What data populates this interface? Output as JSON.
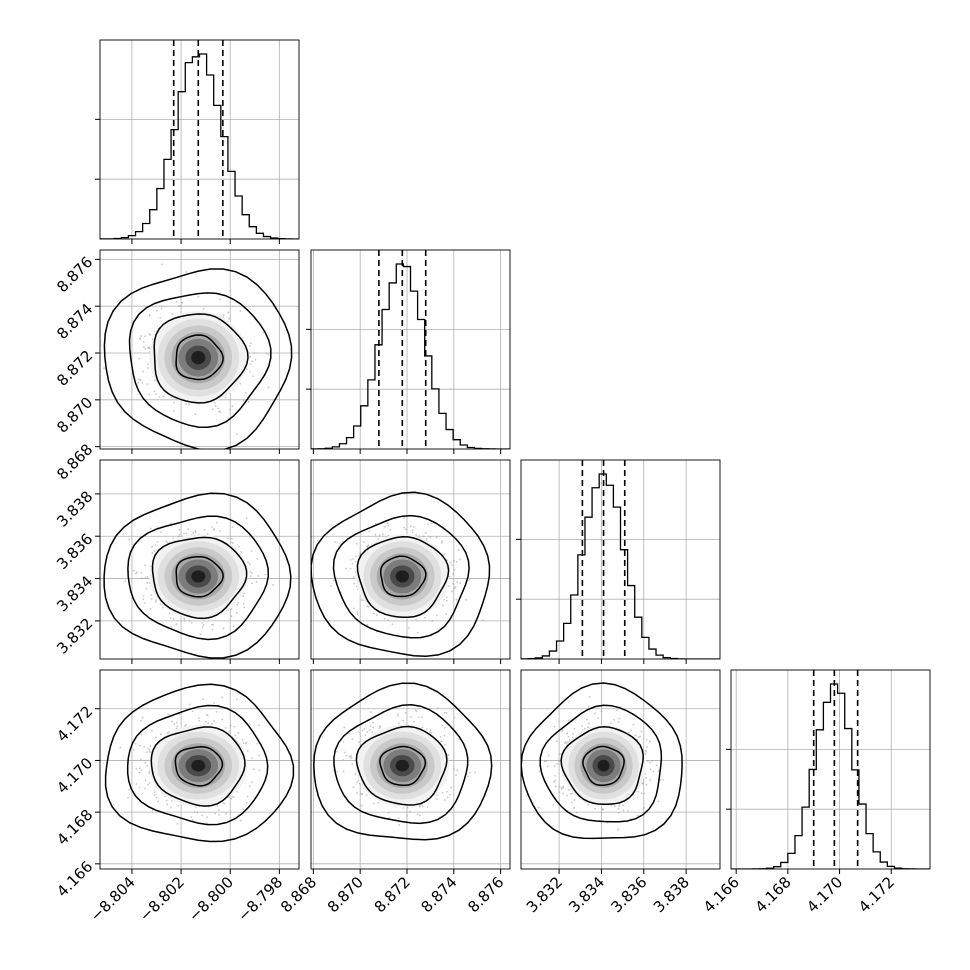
{
  "chart_data": {
    "type": "corner",
    "grid": true,
    "parameters": [
      {
        "id": "p0",
        "range": [
          -8.8053,
          -8.7972
        ],
        "ticks": [
          -8.804,
          -8.802,
          -8.8,
          -8.798
        ],
        "tick_labels": [
          "−8.804",
          "−8.802",
          "−8.800",
          "−8.798"
        ],
        "mean": -8.8013,
        "sigma": 0.00095,
        "quantiles": [
          -8.8023,
          -8.8013,
          -8.8003
        ]
      },
      {
        "id": "p1",
        "range": [
          8.8679,
          8.8764
        ],
        "ticks": [
          8.868,
          8.87,
          8.872,
          8.874,
          8.876
        ],
        "tick_labels": [
          "8.868",
          "8.870",
          "8.872",
          "8.874",
          "8.876"
        ],
        "mean": 8.8718,
        "sigma": 0.00095,
        "quantiles": [
          8.8708,
          8.8718,
          8.8728
        ]
      },
      {
        "id": "p2",
        "range": [
          3.8302,
          3.8396
        ],
        "ticks": [
          3.832,
          3.834,
          3.836,
          3.838
        ],
        "tick_labels": [
          "3.832",
          "3.834",
          "3.836",
          "3.838"
        ],
        "mean": 3.8341,
        "sigma": 0.00095,
        "quantiles": [
          3.8331,
          3.8341,
          3.8351
        ]
      },
      {
        "id": "p3",
        "range": [
          4.1658,
          4.1735
        ],
        "ticks": [
          4.166,
          4.168,
          4.17,
          4.172
        ],
        "tick_labels": [
          "4.166",
          "4.168",
          "4.170",
          "4.172"
        ],
        "mean": 4.1698,
        "sigma": 0.00075,
        "quantiles": [
          4.169,
          4.1698,
          4.1707
        ]
      }
    ],
    "contour_levels_sigma": [
      0.5,
      1.0,
      1.5,
      2.0
    ],
    "colors": {
      "line": "#000000",
      "grid": "#b0b0b0",
      "points": "#9a9a9a"
    }
  }
}
